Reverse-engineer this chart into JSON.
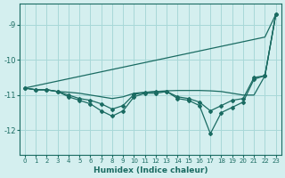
{
  "xlabel": "Humidex (Indice chaleur)",
  "bg_color": "#d4efef",
  "grid_color": "#a8d8d8",
  "line_color": "#1a6b62",
  "xlim": [
    -0.5,
    23.5
  ],
  "ylim": [
    -12.7,
    -8.4
  ],
  "yticks": [
    -12,
    -11,
    -10,
    -9
  ],
  "xticks": [
    0,
    1,
    2,
    3,
    4,
    5,
    6,
    7,
    8,
    9,
    10,
    11,
    12,
    13,
    14,
    15,
    16,
    17,
    18,
    19,
    20,
    21,
    22,
    23
  ],
  "line_diagonal": {
    "x": [
      0,
      22,
      23
    ],
    "y": [
      -10.8,
      -9.35,
      -8.7
    ],
    "markers": false
  },
  "line_flat": {
    "x": [
      0,
      1,
      2,
      3,
      4,
      5,
      6,
      7,
      8,
      9,
      10,
      11,
      12,
      13,
      14,
      15,
      16,
      17,
      18,
      19,
      20,
      21,
      22,
      23
    ],
    "y": [
      -10.8,
      -10.85,
      -10.85,
      -10.9,
      -10.92,
      -10.95,
      -11.0,
      -11.05,
      -11.1,
      -11.05,
      -10.95,
      -10.92,
      -10.9,
      -10.88,
      -10.87,
      -10.87,
      -10.87,
      -10.88,
      -10.9,
      -10.95,
      -11.0,
      -11.0,
      -10.45,
      -8.7
    ],
    "markers": false
  },
  "line_deep": {
    "x": [
      0,
      1,
      2,
      3,
      4,
      5,
      6,
      7,
      8,
      9,
      10,
      11,
      12,
      13,
      14,
      15,
      16,
      17,
      18,
      19,
      20,
      21,
      22,
      23
    ],
    "y": [
      -10.8,
      -10.85,
      -10.85,
      -10.9,
      -11.05,
      -11.15,
      -11.25,
      -11.45,
      -11.6,
      -11.45,
      -11.05,
      -10.95,
      -10.95,
      -10.9,
      -11.1,
      -11.15,
      -11.3,
      -12.1,
      -11.5,
      -11.35,
      -11.2,
      -10.55,
      -10.45,
      -8.7
    ],
    "markers": true
  },
  "line_mid": {
    "x": [
      0,
      1,
      2,
      3,
      4,
      5,
      6,
      7,
      8,
      9,
      10,
      11,
      12,
      13,
      14,
      15,
      16,
      17,
      18,
      19,
      20,
      21,
      22,
      23
    ],
    "y": [
      -10.8,
      -10.85,
      -10.85,
      -10.9,
      -11.0,
      -11.1,
      -11.15,
      -11.25,
      -11.4,
      -11.3,
      -10.98,
      -10.93,
      -10.9,
      -10.9,
      -11.05,
      -11.1,
      -11.2,
      -11.45,
      -11.3,
      -11.15,
      -11.1,
      -10.5,
      -10.45,
      -8.7
    ],
    "markers": true
  }
}
